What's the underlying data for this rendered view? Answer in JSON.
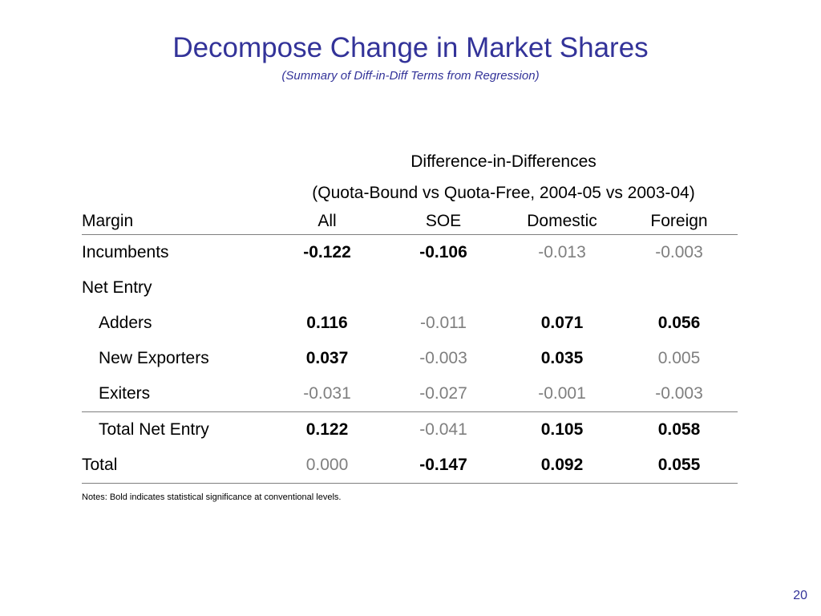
{
  "slide": {
    "title": "Decompose Change in Market Shares",
    "subtitle": "(Summary of Diff-in-Diff Terms from Regression)",
    "page_number": "20",
    "notes": "Notes: Bold indicates statistical significance at conventional levels."
  },
  "table": {
    "super_header_1": "Difference-in-Differences",
    "super_header_2": "(Quota-Bound vs Quota-Free, 2004-05 vs 2003-04)",
    "columns": [
      "Margin",
      "All",
      "SOE",
      "Domestic",
      "Foreign"
    ],
    "rows": [
      {
        "label": "Incumbents",
        "values": [
          "-0.122",
          "-0.106",
          "-0.013",
          "-0.003"
        ],
        "significant": [
          true,
          true,
          false,
          false
        ]
      },
      {
        "label": "Net Entry",
        "values": [
          "",
          "",
          "",
          ""
        ],
        "significant": [
          false,
          false,
          false,
          false
        ]
      },
      {
        "label": "Adders",
        "values": [
          "0.116",
          "-0.011",
          "0.071",
          "0.056"
        ],
        "significant": [
          true,
          false,
          true,
          true
        ]
      },
      {
        "label": "New Exporters",
        "values": [
          "0.037",
          "-0.003",
          "0.035",
          "0.005"
        ],
        "significant": [
          true,
          false,
          true,
          false
        ]
      },
      {
        "label": "Exiters",
        "values": [
          "-0.031",
          "-0.027",
          "-0.001",
          "-0.003"
        ],
        "significant": [
          false,
          false,
          false,
          false
        ]
      },
      {
        "label": "Total Net Entry",
        "values": [
          "0.122",
          "-0.041",
          "0.105",
          "0.058"
        ],
        "significant": [
          true,
          false,
          true,
          true
        ]
      },
      {
        "label": "Total",
        "values": [
          "0.000",
          "-0.147",
          "0.092",
          "0.055"
        ],
        "significant": [
          false,
          true,
          true,
          true
        ]
      }
    ]
  },
  "colors": {
    "title": "#333399",
    "significant": "#000000",
    "not_significant": "#7f7f7f"
  }
}
